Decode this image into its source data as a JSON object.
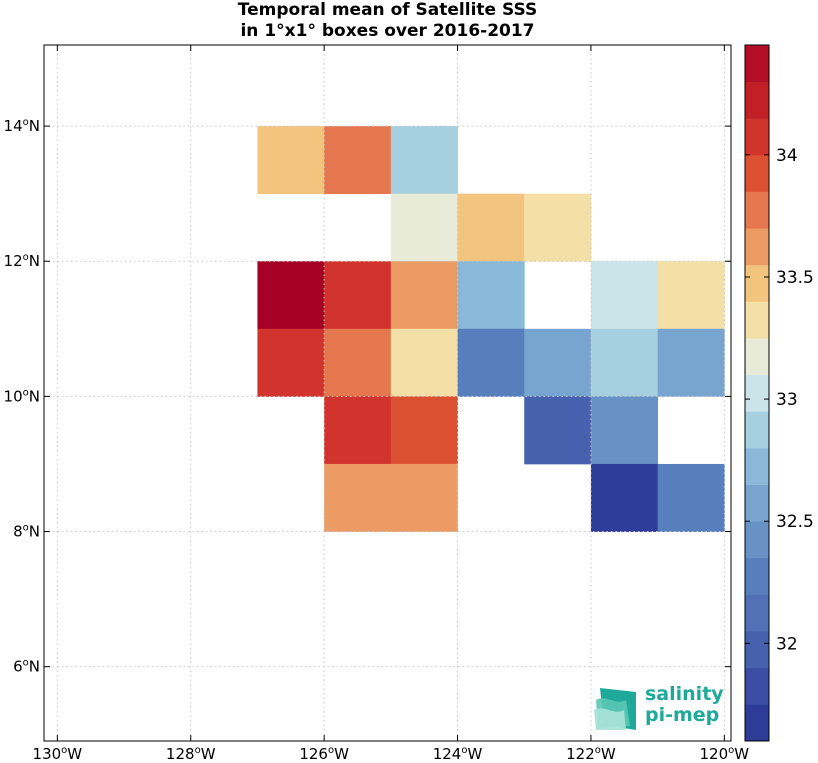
{
  "title": {
    "line1": "Temporal mean of Satellite SSS",
    "line2": "in 1°x1° boxes over 2016-2017"
  },
  "map": {
    "x_ticks": [
      {
        "lon": -130,
        "num": "130",
        "unit": "o",
        "hemi": "W"
      },
      {
        "lon": -128,
        "num": "128",
        "unit": "o",
        "hemi": "W"
      },
      {
        "lon": -126,
        "num": "126",
        "unit": "o",
        "hemi": "W"
      },
      {
        "lon": -124,
        "num": "124",
        "unit": "o",
        "hemi": "W"
      },
      {
        "lon": -122,
        "num": "122",
        "unit": "o",
        "hemi": "W"
      },
      {
        "lon": -120,
        "num": "120",
        "unit": "o",
        "hemi": "W"
      }
    ],
    "y_ticks": [
      {
        "lat": 14,
        "num": "14",
        "unit": "o",
        "hemi": "N"
      },
      {
        "lat": 12,
        "num": "12",
        "unit": "o",
        "hemi": "N"
      },
      {
        "lat": 10,
        "num": "10",
        "unit": "o",
        "hemi": "N"
      },
      {
        "lat": 8,
        "num": "8",
        "unit": "o",
        "hemi": "N"
      },
      {
        "lat": 6,
        "num": "6",
        "unit": "o",
        "hemi": "N"
      }
    ],
    "grid": true
  },
  "chart_data": {
    "type": "heatmap",
    "title": "Temporal mean of Satellite SSS in 1°x1° boxes over 2016-2017",
    "xlim": [
      -130.2,
      -119.9
    ],
    "ylim": [
      4.9,
      15.2
    ],
    "cells": [
      {
        "lon_min": -127,
        "lat_min": 13,
        "value": 33.38,
        "color": "#f3c47e"
      },
      {
        "lon_min": -126,
        "lat_min": 13,
        "value": 33.62,
        "color": "#e6784f"
      },
      {
        "lon_min": -125,
        "lat_min": 13,
        "value": 32.78,
        "color": "#a6cfe0"
      },
      {
        "lon_min": -125,
        "lat_min": 12,
        "value": 33.02,
        "color": "#e7ebd7"
      },
      {
        "lon_min": -124,
        "lat_min": 12,
        "value": 33.38,
        "color": "#f3c47e"
      },
      {
        "lon_min": -123,
        "lat_min": 12,
        "value": 33.22,
        "color": "#f4e0a6"
      },
      {
        "lon_min": -127,
        "lat_min": 11,
        "value": 34.38,
        "color": "#a50026"
      },
      {
        "lon_min": -126,
        "lat_min": 11,
        "value": 33.95,
        "color": "#d0342c"
      },
      {
        "lon_min": -125,
        "lat_min": 11,
        "value": 33.52,
        "color": "#ed9b65"
      },
      {
        "lon_min": -124,
        "lat_min": 11,
        "value": 32.68,
        "color": "#89b8d8"
      },
      {
        "lon_min": -122,
        "lat_min": 11,
        "value": 32.92,
        "color": "#cbe4ea"
      },
      {
        "lon_min": -121,
        "lat_min": 11,
        "value": 33.22,
        "color": "#f4e0a6"
      },
      {
        "lon_min": -127,
        "lat_min": 10,
        "value": 33.95,
        "color": "#d0342c"
      },
      {
        "lon_min": -126,
        "lat_min": 10,
        "value": 33.62,
        "color": "#e6784f"
      },
      {
        "lon_min": -125,
        "lat_min": 10,
        "value": 33.22,
        "color": "#f4e0a6"
      },
      {
        "lon_min": -124,
        "lat_min": 10,
        "value": 32.22,
        "color": "#577fbd"
      },
      {
        "lon_min": -123,
        "lat_min": 10,
        "value": 32.52,
        "color": "#78a5cf"
      },
      {
        "lon_min": -122,
        "lat_min": 10,
        "value": 32.78,
        "color": "#a6cfe0"
      },
      {
        "lon_min": -121,
        "lat_min": 10,
        "value": 32.52,
        "color": "#78a5cf"
      },
      {
        "lon_min": -126,
        "lat_min": 9,
        "value": 33.95,
        "color": "#d0342c"
      },
      {
        "lon_min": -125,
        "lat_min": 9,
        "value": 33.82,
        "color": "#dd5133"
      },
      {
        "lon_min": -123,
        "lat_min": 9,
        "value": 32.08,
        "color": "#4661ae"
      },
      {
        "lon_min": -122,
        "lat_min": 9,
        "value": 32.38,
        "color": "#6891c6"
      },
      {
        "lon_min": -126,
        "lat_min": 8,
        "value": 33.52,
        "color": "#ed9b65"
      },
      {
        "lon_min": -125,
        "lat_min": 8,
        "value": 33.52,
        "color": "#ed9b65"
      },
      {
        "lon_min": -122,
        "lat_min": 8,
        "value": 31.78,
        "color": "#2e3c99"
      },
      {
        "lon_min": -121,
        "lat_min": 8,
        "value": 32.22,
        "color": "#577fbd"
      }
    ]
  },
  "colorbar": {
    "vmin": 31.6,
    "vmax": 34.45,
    "step": 0.15,
    "colors": [
      "#2e3c99",
      "#3a4ea5",
      "#4661ae",
      "#5270b6",
      "#577fbd",
      "#6891c6",
      "#78a5cf",
      "#89b8d8",
      "#a6cfe0",
      "#cbe4ea",
      "#e7ebd7",
      "#f4e0a6",
      "#f3c47e",
      "#ed9b65",
      "#e6784f",
      "#dd5133",
      "#d0342c",
      "#c21f27",
      "#b31028",
      "#a50026"
    ],
    "ticks": [
      {
        "value": 32,
        "label": "32"
      },
      {
        "value": 32.5,
        "label": "32.5"
      },
      {
        "value": 33,
        "label": "33"
      },
      {
        "value": 33.5,
        "label": "33.5"
      },
      {
        "value": 34,
        "label": "34"
      }
    ]
  },
  "logo": {
    "line1": "salinity",
    "line2": "pi-mep"
  }
}
